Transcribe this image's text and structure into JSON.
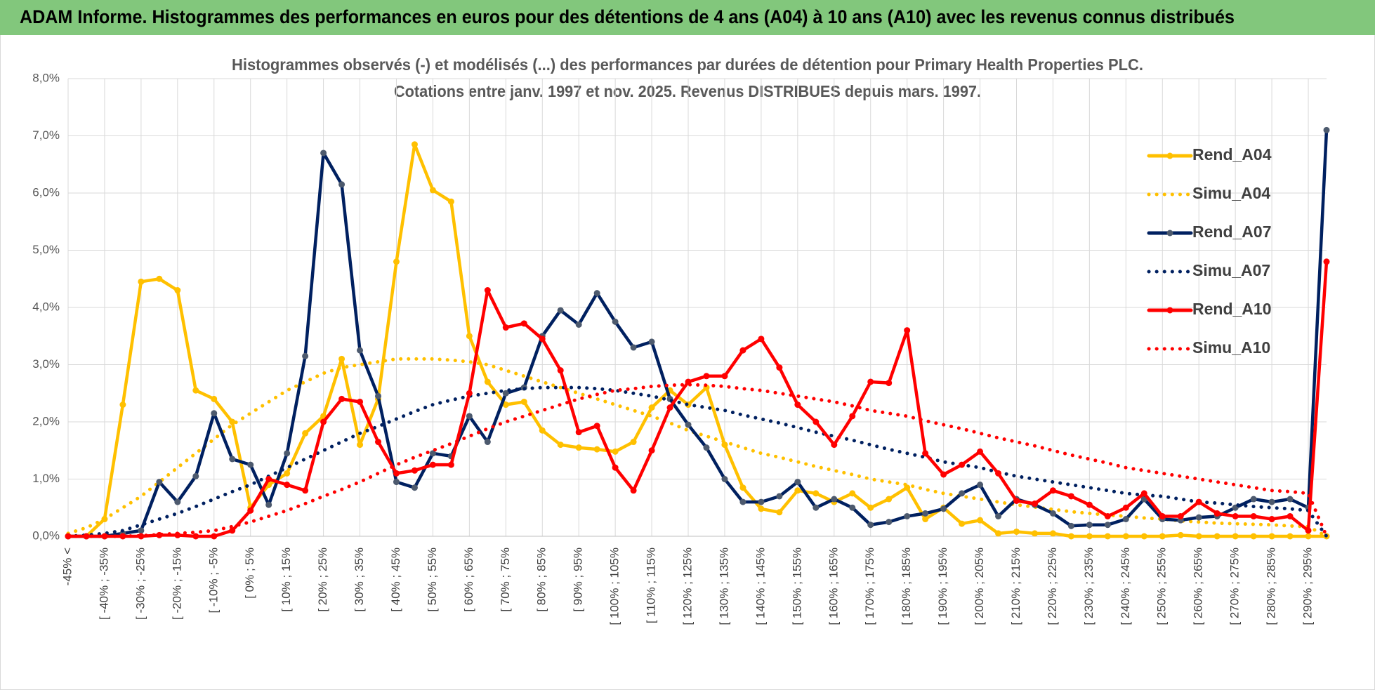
{
  "header": {
    "title": "ADAM Informe. Histogrammes des performances en euros pour des détentions de 4 ans (A04) à 10 ans (A10) avec les revenus connus distribués"
  },
  "chart_data": {
    "type": "line",
    "title": "Histogrammes observés (-) et modélisés (...) des performances par durées de détention pour Primary Health Properties PLC.",
    "subtitle": "Cotations entre janv. 1997 et nov. 2025. Revenus DISTRIBUES depuis mars. 1997.",
    "categories": [
      "-45% <",
      null,
      "[ -40% ; -35%",
      null,
      "[ -30% ; -25%",
      null,
      "[ -20% ; -15%",
      null,
      "[ -10% ; -5%",
      null,
      "[ 0% ; 5%",
      null,
      "[ 10% ; 15%",
      null,
      "[ 20% ; 25%",
      null,
      "[ 30% ; 35%",
      null,
      "[ 40% ; 45%",
      null,
      "[ 50% ; 55%",
      null,
      "[ 60% ; 65%",
      null,
      "[ 70% ; 75%",
      null,
      "[ 80% ; 85%",
      null,
      "[ 90% ; 95%",
      null,
      "[ 100% ; 105%",
      null,
      "[ 110% ; 115%",
      null,
      "[ 120% ; 125%",
      null,
      "[ 130% ; 135%",
      null,
      "[ 140% ; 145%",
      null,
      "[ 150% ; 155%",
      null,
      "[ 160% ; 165%",
      null,
      "[ 170% ; 175%",
      null,
      "[ 180% ; 185%",
      null,
      "[ 190% ; 195%",
      null,
      "[ 200% ; 205%",
      null,
      "[ 210% ; 215%",
      null,
      "[ 220% ; 225%",
      null,
      "[ 230% ; 235%",
      null,
      "[ 240% ; 245%",
      null,
      "[ 250% ; 255%",
      null,
      "[ 260% ; 265%",
      null,
      "[ 270% ; 275%",
      null,
      "[ 280% ; 285%",
      null,
      "[ 290% ; 295%",
      null
    ],
    "ylim": [
      0,
      8
    ],
    "yticks": [
      {
        "value": 0,
        "label": "0,0%"
      },
      {
        "value": 1,
        "label": "1,0%"
      },
      {
        "value": 2,
        "label": "2,0%"
      },
      {
        "value": 3,
        "label": "3,0%"
      },
      {
        "value": 4,
        "label": "4,0%"
      },
      {
        "value": 5,
        "label": "5,0%"
      },
      {
        "value": 6,
        "label": "6,0%"
      },
      {
        "value": 7,
        "label": "7,0%"
      },
      {
        "value": 8,
        "label": "8,0%"
      }
    ],
    "grid": true,
    "legend": "right",
    "series": [
      {
        "name": "Rend_A04",
        "color": "#FFC000",
        "style": "solid",
        "marker_color": "#FFC000",
        "values": [
          0,
          0,
          0.3,
          2.3,
          4.45,
          4.5,
          4.3,
          2.55,
          2.4,
          2.0,
          0.5,
          0.9,
          1.1,
          1.8,
          2.1,
          3.1,
          1.6,
          2.4,
          4.8,
          6.85,
          6.05,
          5.85,
          3.5,
          2.7,
          2.3,
          2.35,
          1.85,
          1.6,
          1.55,
          1.52,
          1.48,
          1.65,
          2.25,
          2.55,
          2.3,
          2.6,
          1.6,
          0.85,
          0.48,
          0.42,
          0.8,
          0.75,
          0.6,
          0.75,
          0.5,
          0.65,
          0.85,
          0.3,
          0.5,
          0.22,
          0.28,
          0.05,
          0.08,
          0.05,
          0.05,
          0,
          0,
          0,
          0,
          0,
          0,
          0.02,
          0,
          0,
          0,
          0,
          0,
          0,
          0,
          0
        ]
      },
      {
        "name": "Simu_A04",
        "color": "#FFC000",
        "style": "dotted",
        "values": [
          0.05,
          0.15,
          0.3,
          0.5,
          0.7,
          0.95,
          1.2,
          1.45,
          1.7,
          1.95,
          2.15,
          2.35,
          2.55,
          2.7,
          2.85,
          2.95,
          3.0,
          3.05,
          3.1,
          3.1,
          3.1,
          3.08,
          3.05,
          3.0,
          2.9,
          2.8,
          2.7,
          2.6,
          2.5,
          2.4,
          2.3,
          2.2,
          2.1,
          1.98,
          1.85,
          1.75,
          1.65,
          1.55,
          1.45,
          1.38,
          1.3,
          1.22,
          1.15,
          1.08,
          1.0,
          0.95,
          0.9,
          0.82,
          0.75,
          0.7,
          0.65,
          0.6,
          0.55,
          0.51,
          0.47,
          0.43,
          0.4,
          0.37,
          0.35,
          0.32,
          0.3,
          0.27,
          0.25,
          0.23,
          0.22,
          0.21,
          0.2,
          0.18,
          0.17,
          0
        ]
      },
      {
        "name": "Rend_A07",
        "color": "#002060",
        "style": "solid",
        "marker_color": "#4D5A6E",
        "values": [
          0,
          0,
          0,
          0.05,
          0.1,
          0.95,
          0.6,
          1.05,
          2.15,
          1.35,
          1.25,
          0.55,
          1.45,
          3.15,
          6.7,
          6.15,
          3.25,
          2.45,
          0.95,
          0.85,
          1.45,
          1.4,
          2.1,
          1.65,
          2.5,
          2.6,
          3.5,
          3.95,
          3.7,
          4.25,
          3.75,
          3.3,
          3.4,
          2.4,
          1.95,
          1.55,
          1.0,
          0.6,
          0.6,
          0.7,
          0.95,
          0.5,
          0.65,
          0.5,
          0.2,
          0.25,
          0.35,
          0.4,
          0.48,
          0.75,
          0.9,
          0.35,
          0.65,
          0.55,
          0.4,
          0.18,
          0.2,
          0.2,
          0.3,
          0.65,
          0.3,
          0.28,
          0.33,
          0.35,
          0.5,
          0.65,
          0.6,
          0.65,
          0.5,
          7.1
        ]
      },
      {
        "name": "Simu_A07",
        "color": "#002060",
        "style": "dotted",
        "values": [
          0,
          0.02,
          0.05,
          0.1,
          0.2,
          0.3,
          0.4,
          0.52,
          0.65,
          0.78,
          0.9,
          1.05,
          1.2,
          1.35,
          1.5,
          1.65,
          1.8,
          1.92,
          2.05,
          2.18,
          2.3,
          2.38,
          2.45,
          2.5,
          2.55,
          2.58,
          2.6,
          2.6,
          2.6,
          2.58,
          2.55,
          2.5,
          2.45,
          2.38,
          2.3,
          2.25,
          2.2,
          2.12,
          2.05,
          1.98,
          1.9,
          1.82,
          1.75,
          1.68,
          1.6,
          1.52,
          1.45,
          1.38,
          1.3,
          1.25,
          1.2,
          1.12,
          1.05,
          1.0,
          0.95,
          0.9,
          0.85,
          0.8,
          0.75,
          0.72,
          0.7,
          0.65,
          0.6,
          0.58,
          0.55,
          0.52,
          0.5,
          0.48,
          0.45,
          0
        ]
      },
      {
        "name": "Rend_A10",
        "color": "#FF0000",
        "style": "solid",
        "marker_color": "#FF0000",
        "values": [
          0,
          0,
          0,
          0,
          0,
          0.02,
          0.02,
          0,
          0,
          0.1,
          0.45,
          1.0,
          0.9,
          0.8,
          2.0,
          2.4,
          2.35,
          1.65,
          1.1,
          1.15,
          1.25,
          1.25,
          2.5,
          4.3,
          3.65,
          3.72,
          3.45,
          2.9,
          1.82,
          1.93,
          1.2,
          0.8,
          1.5,
          2.25,
          2.7,
          2.8,
          2.8,
          3.25,
          3.45,
          2.95,
          2.3,
          2.0,
          1.6,
          2.1,
          2.7,
          2.68,
          3.6,
          1.45,
          1.08,
          1.25,
          1.48,
          1.1,
          0.62,
          0.57,
          0.8,
          0.7,
          0.55,
          0.35,
          0.5,
          0.75,
          0.35,
          0.35,
          0.6,
          0.4,
          0.35,
          0.35,
          0.3,
          0.35,
          0.1,
          4.8
        ]
      },
      {
        "name": "Simu_A10",
        "color": "#FF0000",
        "style": "dotted",
        "values": [
          0,
          0,
          0,
          0,
          0.01,
          0.03,
          0.05,
          0.07,
          0.1,
          0.17,
          0.25,
          0.35,
          0.45,
          0.57,
          0.7,
          0.82,
          0.95,
          1.1,
          1.25,
          1.38,
          1.5,
          1.62,
          1.75,
          1.88,
          2.0,
          2.1,
          2.2,
          2.3,
          2.4,
          2.48,
          2.55,
          2.58,
          2.62,
          2.64,
          2.65,
          2.64,
          2.62,
          2.58,
          2.55,
          2.5,
          2.45,
          2.4,
          2.35,
          2.28,
          2.2,
          2.15,
          2.1,
          2.02,
          1.95,
          1.88,
          1.8,
          1.72,
          1.65,
          1.58,
          1.5,
          1.42,
          1.35,
          1.28,
          1.2,
          1.15,
          1.1,
          1.05,
          1.0,
          0.95,
          0.9,
          0.85,
          0.8,
          0.78,
          0.75,
          0
        ]
      }
    ]
  }
}
